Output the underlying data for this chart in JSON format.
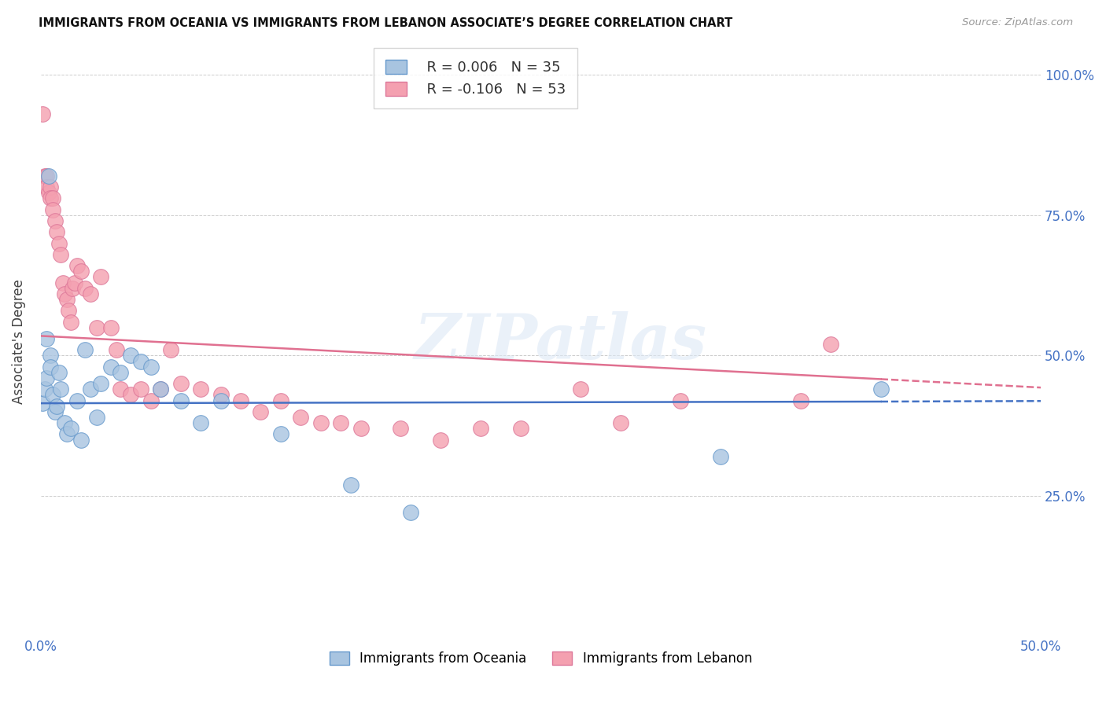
{
  "title": "IMMIGRANTS FROM OCEANIA VS IMMIGRANTS FROM LEBANON ASSOCIATE’S DEGREE CORRELATION CHART",
  "source": "Source: ZipAtlas.com",
  "ylabel": "Associate's Degree",
  "xlim": [
    0.0,
    0.5
  ],
  "ylim": [
    0.0,
    1.05
  ],
  "xtick_positions": [
    0.0,
    0.1,
    0.2,
    0.3,
    0.4,
    0.5
  ],
  "xtick_labels": [
    "0.0%",
    "",
    "",
    "",
    "",
    "50.0%"
  ],
  "ytick_positions": [
    0.0,
    0.25,
    0.5,
    0.75,
    1.0
  ],
  "ytick_labels_right": [
    "",
    "25.0%",
    "50.0%",
    "75.0%",
    "100.0%"
  ],
  "oceania_color": "#a8c4e0",
  "lebanon_color": "#f4a0b0",
  "oceania_edge": "#6699cc",
  "lebanon_edge": "#dd7799",
  "trendline_oceania_color": "#4472c4",
  "trendline_lebanon_color": "#e07090",
  "watermark": "ZIPatlas",
  "legend_r_oceania": "R = 0.006",
  "legend_n_oceania": "N = 35",
  "legend_r_lebanon": "R = -0.106",
  "legend_n_lebanon": "N = 53",
  "oceania_trendline_x0": 0.0,
  "oceania_trendline_y0": 0.415,
  "oceania_trendline_x1": 0.42,
  "oceania_trendline_y1": 0.418,
  "oceania_trendline_xdash": 0.5,
  "oceania_trendline_ydash": 0.419,
  "lebanon_trendline_x0": 0.0,
  "lebanon_trendline_y0": 0.535,
  "lebanon_trendline_x1": 0.42,
  "lebanon_trendline_y1": 0.458,
  "lebanon_trendline_xdash": 0.5,
  "lebanon_trendline_ydash": 0.443,
  "oceania_x": [
    0.001,
    0.002,
    0.003,
    0.003,
    0.004,
    0.005,
    0.005,
    0.006,
    0.007,
    0.008,
    0.009,
    0.01,
    0.012,
    0.013,
    0.015,
    0.018,
    0.02,
    0.022,
    0.025,
    0.028,
    0.03,
    0.035,
    0.04,
    0.045,
    0.05,
    0.055,
    0.06,
    0.07,
    0.08,
    0.09,
    0.12,
    0.155,
    0.185,
    0.34,
    0.42
  ],
  "oceania_y": [
    0.415,
    0.44,
    0.53,
    0.46,
    0.82,
    0.5,
    0.48,
    0.43,
    0.4,
    0.41,
    0.47,
    0.44,
    0.38,
    0.36,
    0.37,
    0.42,
    0.35,
    0.51,
    0.44,
    0.39,
    0.45,
    0.48,
    0.47,
    0.5,
    0.49,
    0.48,
    0.44,
    0.42,
    0.38,
    0.42,
    0.36,
    0.27,
    0.22,
    0.32,
    0.44
  ],
  "lebanon_x": [
    0.001,
    0.002,
    0.003,
    0.003,
    0.004,
    0.005,
    0.005,
    0.006,
    0.006,
    0.007,
    0.008,
    0.009,
    0.01,
    0.011,
    0.012,
    0.013,
    0.014,
    0.015,
    0.016,
    0.017,
    0.018,
    0.02,
    0.022,
    0.025,
    0.028,
    0.03,
    0.035,
    0.038,
    0.04,
    0.045,
    0.05,
    0.055,
    0.06,
    0.065,
    0.07,
    0.08,
    0.09,
    0.1,
    0.11,
    0.12,
    0.13,
    0.14,
    0.15,
    0.16,
    0.18,
    0.2,
    0.22,
    0.24,
    0.27,
    0.29,
    0.32,
    0.38,
    0.395
  ],
  "lebanon_y": [
    0.93,
    0.82,
    0.82,
    0.8,
    0.79,
    0.8,
    0.78,
    0.78,
    0.76,
    0.74,
    0.72,
    0.7,
    0.68,
    0.63,
    0.61,
    0.6,
    0.58,
    0.56,
    0.62,
    0.63,
    0.66,
    0.65,
    0.62,
    0.61,
    0.55,
    0.64,
    0.55,
    0.51,
    0.44,
    0.43,
    0.44,
    0.42,
    0.44,
    0.51,
    0.45,
    0.44,
    0.43,
    0.42,
    0.4,
    0.42,
    0.39,
    0.38,
    0.38,
    0.37,
    0.37,
    0.35,
    0.37,
    0.37,
    0.44,
    0.38,
    0.42,
    0.42,
    0.52
  ]
}
